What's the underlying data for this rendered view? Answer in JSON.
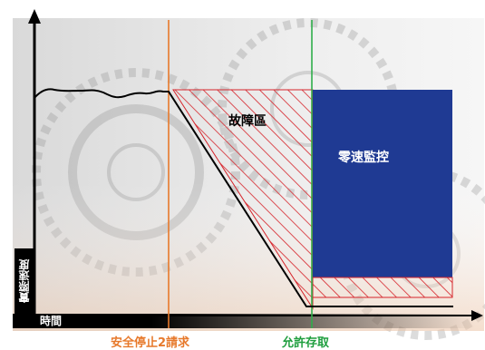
{
  "diagram": {
    "axis_y_label": "實際速度",
    "axis_x_label": "時間",
    "fault_zone_label": "故障區",
    "zero_speed_label": "零速監控",
    "safe_stop_request_label": "安全停止2請求",
    "allow_access_label": "允許存取"
  },
  "colors": {
    "stop_line": "#e7792b",
    "allow_line": "#2fae4a",
    "zero_speed_box": "#1f3a93",
    "hatch": "#d6242b",
    "speed_curve": "#000000"
  }
}
